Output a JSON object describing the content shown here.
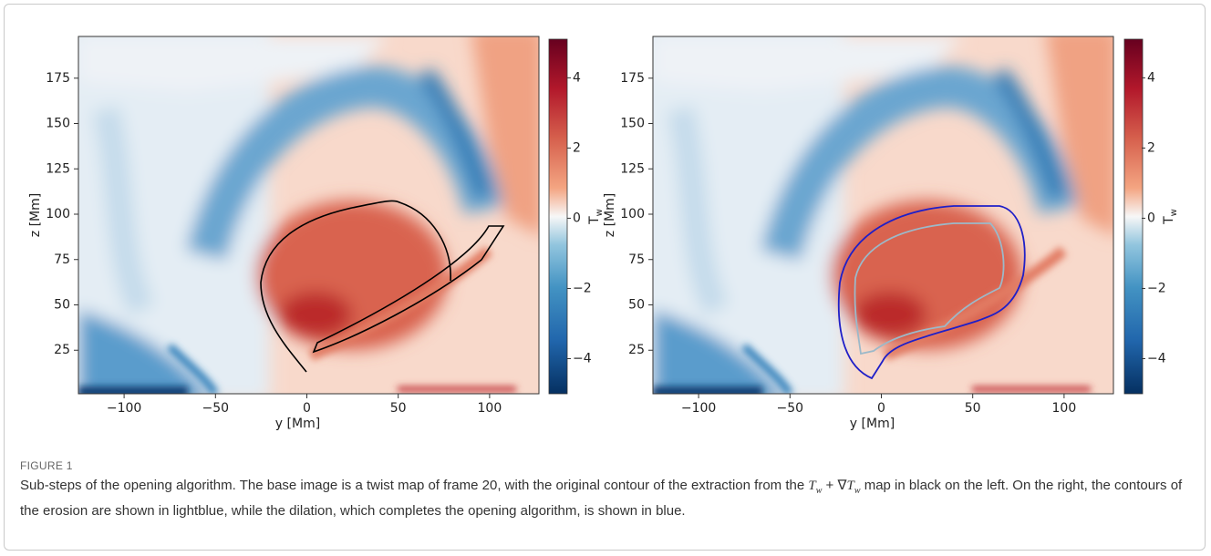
{
  "chart_data": [
    {
      "type": "heatmap",
      "x_label": "y [Mm]",
      "y_label": "z [Mm]",
      "xlim": [
        -125,
        127
      ],
      "ylim": [
        1,
        198
      ],
      "xticks": [
        {
          "value": -100,
          "label": "−100"
        },
        {
          "value": -50,
          "label": "−50"
        },
        0,
        50,
        100
      ],
      "yticks": [
        25,
        50,
        75,
        100,
        125,
        150,
        175
      ],
      "colorbar": {
        "label": "T",
        "label_sub": "w",
        "lim": [
          -5,
          5.1
        ],
        "ticks": [
          {
            "value": -4,
            "label": "−4"
          },
          {
            "value": -2,
            "label": "−2"
          },
          0,
          2,
          4
        ]
      }
    },
    {
      "type": "heatmap",
      "x_label": "y [Mm]",
      "y_label": "z [Mm]",
      "xlim": [
        -125,
        127
      ],
      "ylim": [
        1,
        198
      ],
      "xticks": [
        {
          "value": -100,
          "label": "−100"
        },
        {
          "value": -50,
          "label": "−50"
        },
        0,
        50,
        100
      ],
      "yticks": [
        25,
        50,
        75,
        100,
        125,
        150,
        175
      ],
      "colorbar": {
        "label": "T",
        "label_sub": "w",
        "lim": [
          -5,
          5.1
        ],
        "ticks": [
          {
            "value": -4,
            "label": "−4"
          },
          {
            "value": -2,
            "label": "−2"
          },
          0,
          2,
          4
        ]
      }
    }
  ],
  "caption": {
    "label": "FIGURE 1",
    "parts": [
      "Sub-steps of the opening algorithm. The base image is a twist map of frame 20, with the original contour of the extraction from the ",
      "T",
      "w",
      " + ∇",
      "T",
      "w",
      " map in black on the left. On the right, the contours of the erosion are shown in lightblue, while the dilation, which completes the opening algorithm, is shown in blue."
    ]
  }
}
